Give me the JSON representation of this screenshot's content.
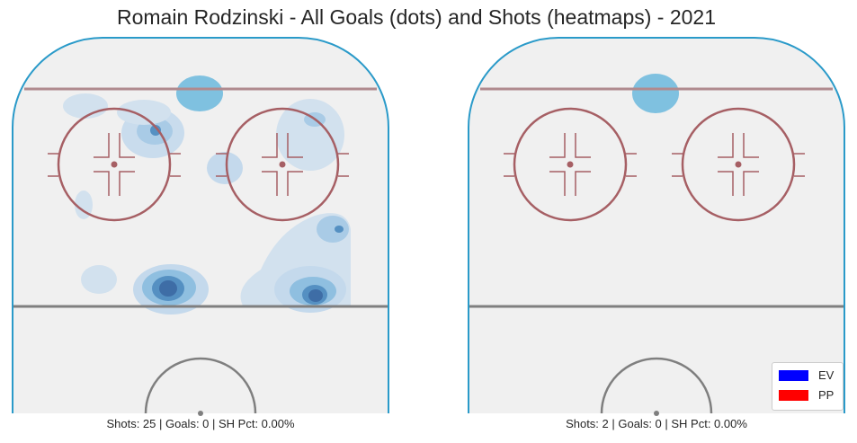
{
  "title": "Romain Rodzinski - All Goals (dots) and Shots (heatmaps) - 2021",
  "colors": {
    "board": "#2a9ac9",
    "red_line": "#b08a8e",
    "circle": "#a65f64",
    "gray_line": "#7f7f7f",
    "ice": "#f0f0f0",
    "heat_light": "#c4d9ec",
    "heat_mid": "#8fbfe0",
    "heat_dark": "#5590c2",
    "heat_darkest": "#3e6da6"
  },
  "panels": [
    {
      "caption": "Shots: 25 | Goals: 0 | SH Pct: 0.00%"
    },
    {
      "caption": "Shots: 2 | Goals: 0 | SH Pct: 0.00%"
    }
  ],
  "legend": {
    "items": [
      {
        "label": "EV",
        "color": "#0000ff"
      },
      {
        "label": "PP",
        "color": "#ff0000"
      }
    ]
  },
  "chart_data": [
    {
      "type": "heatmap",
      "title": "Romain Rodzinski - All Goals (dots) and Shots (heatmaps) - 2021",
      "shots": 25,
      "goals": 0,
      "sh_pct": "0.00%",
      "goals_dots": []
    },
    {
      "type": "heatmap",
      "shots": 2,
      "goals": 0,
      "sh_pct": "0.00%",
      "goals_dots": [],
      "legend": [
        "EV",
        "PP"
      ],
      "legend_position": "lower-right"
    }
  ]
}
